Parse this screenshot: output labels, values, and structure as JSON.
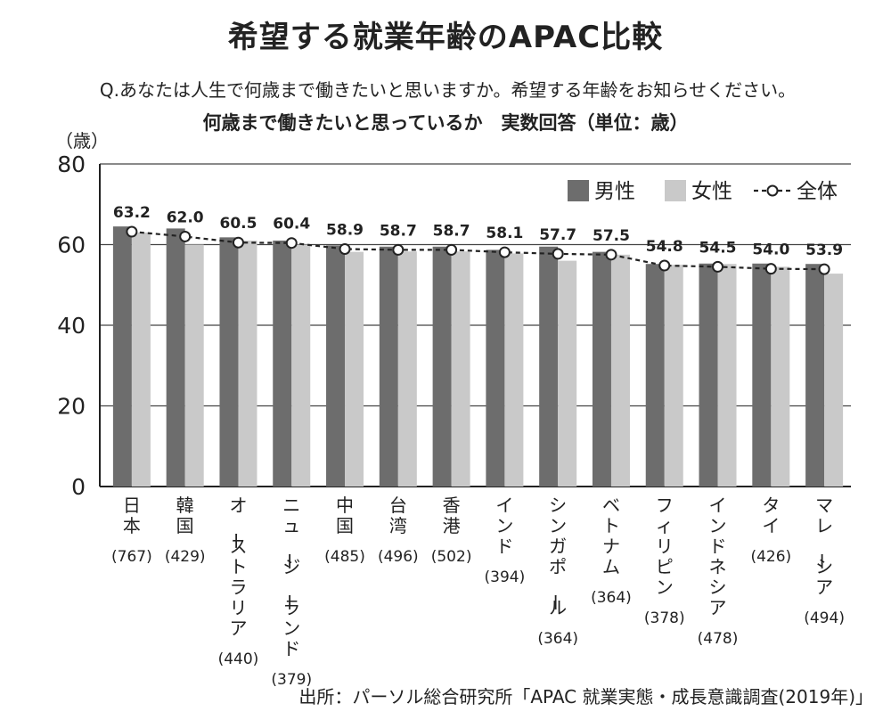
{
  "header": {
    "title": "希望する就業年齢のAPAC比較",
    "question": "Q.あなたは人生で何歳まで働きたいと思いますか。希望する年齢をお知らせください。",
    "subtitle": "何歳まで働きたいと思っているか　実数回答（単位：歳）"
  },
  "footer": {
    "source": "出所：パーソル総合研究所「APAC 就業実態・成長意識調査(2019年)」"
  },
  "colors": {
    "male": "#6d6d6d",
    "female": "#c9c9c9",
    "line": "#222222",
    "grid": "#444444"
  },
  "chart_data": {
    "type": "bar",
    "ylabel": "（歳）",
    "ylim": [
      0,
      80
    ],
    "yticks": [
      0,
      20,
      40,
      60,
      80
    ],
    "legend_position": "top-right",
    "categories": [
      "日本",
      "韓国",
      "オーストラリア",
      "ニュージーランド",
      "中国",
      "台湾",
      "香港",
      "インド",
      "シンガポール",
      "ベトナム",
      "フィリピン",
      "インドネシア",
      "タイ",
      "マレーシア"
    ],
    "sample_sizes": [
      "(767)",
      "(429)",
      "(440)",
      "(379)",
      "(485)",
      "(496)",
      "(502)",
      "(394)",
      "(364)",
      "(364)",
      "(378)",
      "(478)",
      "(426)",
      "(494)"
    ],
    "series": [
      {
        "name": "男性",
        "type": "bar",
        "values": [
          64.5,
          64.0,
          61.8,
          61.0,
          59.8,
          59.5,
          59.5,
          58.7,
          59.5,
          58.2,
          55.2,
          55.3,
          55.3,
          55.2
        ]
      },
      {
        "name": "女性",
        "type": "bar",
        "values": [
          63.0,
          60.0,
          61.0,
          60.0,
          58.2,
          58.3,
          58.3,
          57.8,
          56.0,
          57.5,
          55.0,
          55.2,
          54.5,
          52.8
        ]
      },
      {
        "name": "全体",
        "type": "line",
        "values": [
          63.2,
          62.0,
          60.5,
          60.4,
          58.9,
          58.7,
          58.7,
          58.1,
          57.7,
          57.5,
          54.8,
          54.5,
          54.0,
          53.9
        ]
      }
    ],
    "value_labels": [
      "63.2",
      "62.0",
      "60.5",
      "60.4",
      "58.9",
      "58.7",
      "58.7",
      "58.1",
      "57.7",
      "57.5",
      "54.8",
      "54.5",
      "54.0",
      "53.9"
    ]
  }
}
